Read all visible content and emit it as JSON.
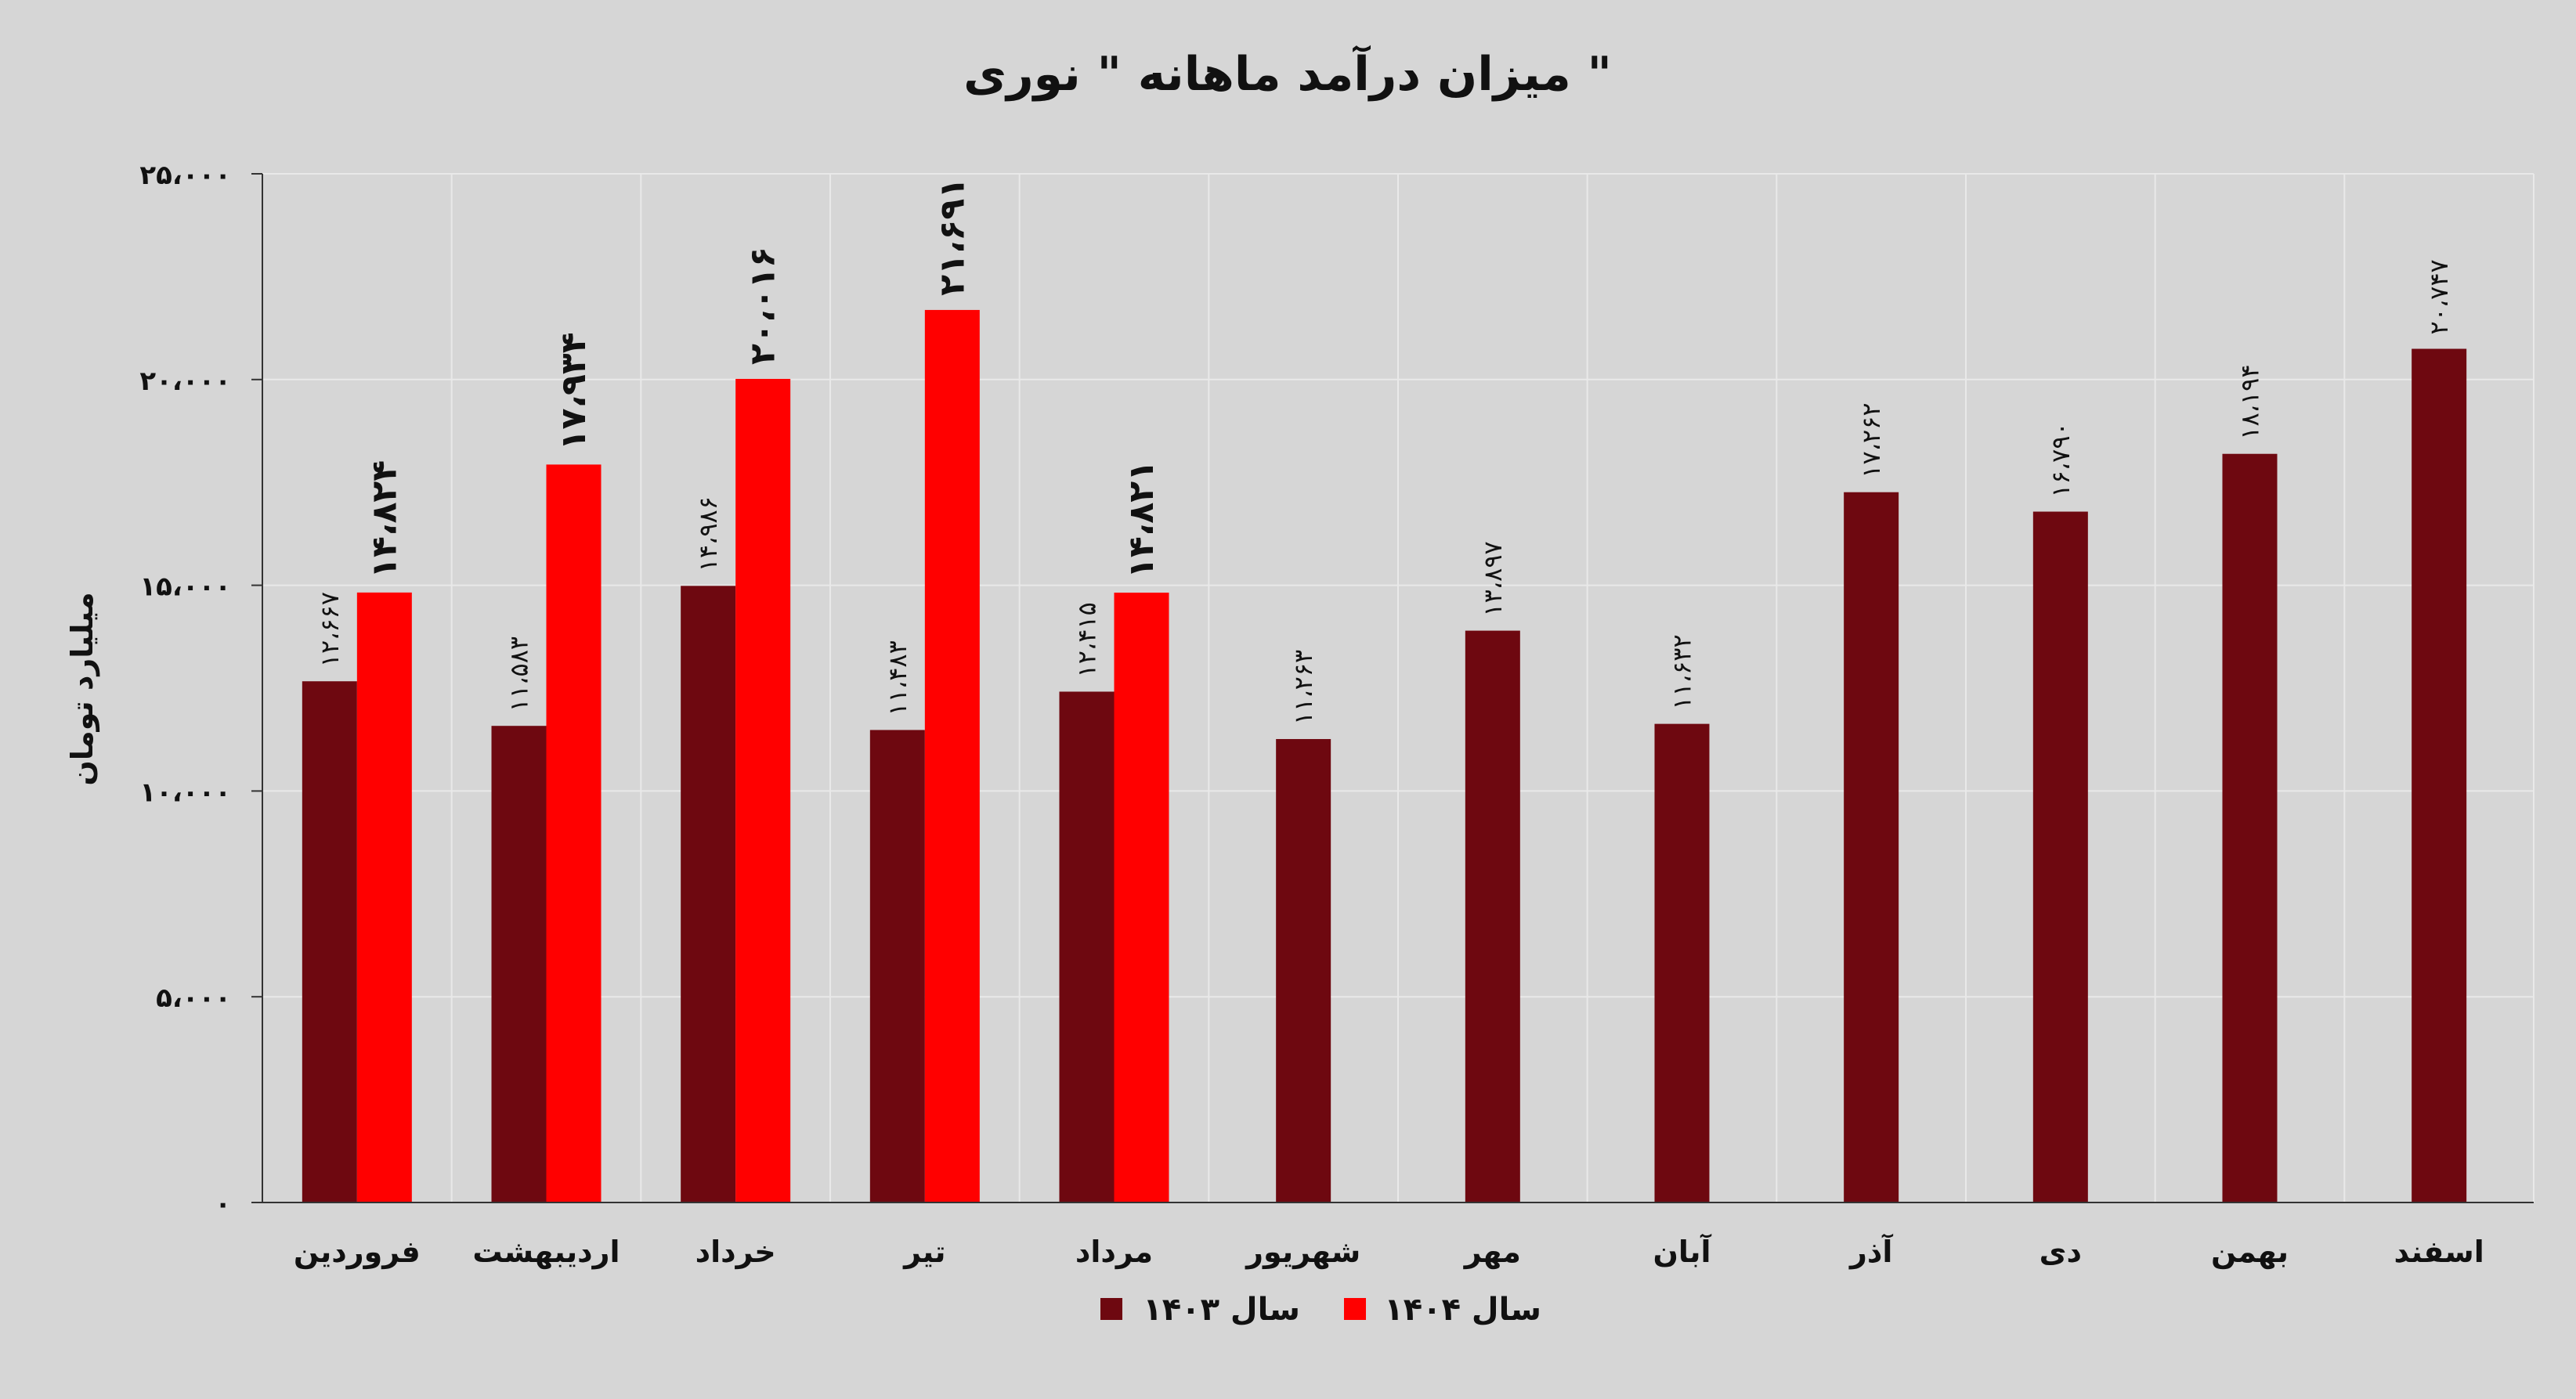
{
  "chart_data": {
    "type": "bar",
    "title": "میزان درآمد ماهانه \" نوری \"",
    "ylabel": "میلیارد تومان",
    "xlabel": "",
    "ylim": [
      0,
      25000
    ],
    "y_ticks": [
      0,
      5000,
      10000,
      15000,
      20000,
      25000
    ],
    "y_tick_labels": [
      "۰",
      "۵،۰۰۰",
      "۱۰،۰۰۰",
      "۱۵،۰۰۰",
      "۲۰،۰۰۰",
      "۲۵،۰۰۰"
    ],
    "grid": true,
    "legend_position": "bottom",
    "categories": [
      "فروردین",
      "اردیبهشت",
      "خرداد",
      "تیر",
      "مرداد",
      "شهریور",
      "مهر",
      "آبان",
      "آذر",
      "دی",
      "بهمن",
      "اسفند"
    ],
    "series": [
      {
        "name": "سال ۱۴۰۳",
        "color": "#6e0810",
        "values": [
          12667,
          11583,
          14986,
          11483,
          12415,
          11263,
          13897,
          11632,
          17262,
          16790,
          18194,
          20747
        ],
        "labels": [
          "۱۲،۶۶۷",
          "۱۱،۵۸۳",
          "۱۴،۹۸۶",
          "۱۱،۴۸۳",
          "۱۲،۴۱۵",
          "۱۱،۲۶۳",
          "۱۳،۸۹۷",
          "۱۱،۶۳۲",
          "۱۷،۲۶۲",
          "۱۶،۷۹۰",
          "۱۸،۱۹۴",
          "۲۰،۷۴۷"
        ]
      },
      {
        "name": "سال ۱۴۰۴",
        "color": "#ff0000",
        "values": [
          14824,
          17934,
          20016,
          21691,
          14821,
          null,
          null,
          null,
          null,
          null,
          null,
          null
        ],
        "labels": [
          "۱۴،۸۲۴",
          "۱۷،۹۳۴",
          "۲۰،۰۱۶",
          "۲۱،۶۹۱",
          "۱۴،۸۲۱",
          null,
          null,
          null,
          null,
          null,
          null,
          null
        ]
      }
    ]
  }
}
